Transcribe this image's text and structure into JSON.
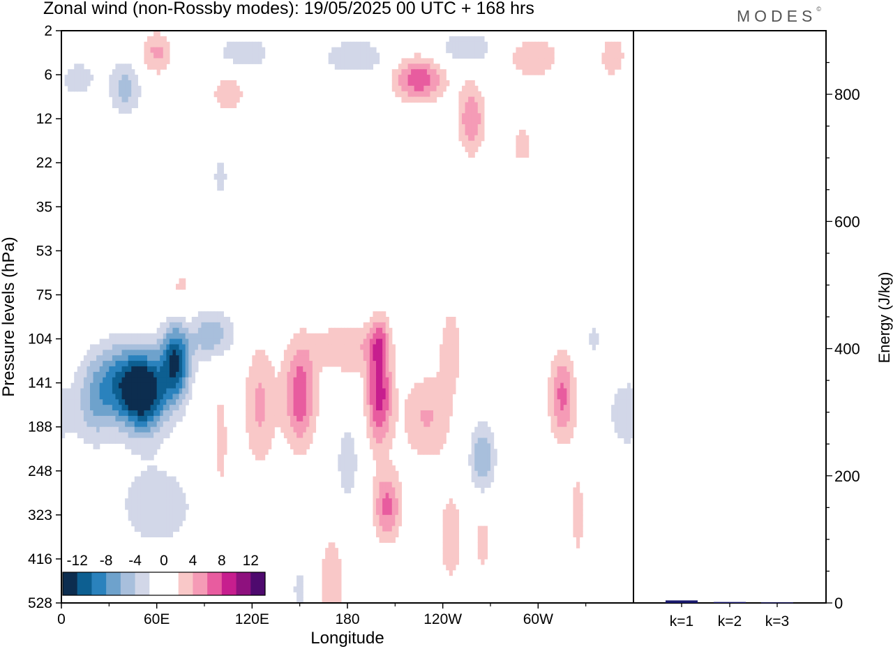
{
  "title": "Zonal wind (non-Rossby modes):  19/05/2025  00 UTC  + 168 hrs",
  "logo": "MODES",
  "chart_data": [
    {
      "type": "heatmap",
      "xlabel": "Longitude",
      "ylabel": "Pressure levels (hPa)",
      "x_ticks": [
        "0",
        "60E",
        "120E",
        "180",
        "120W",
        "60W"
      ],
      "x_tick_degrees": [
        0,
        60,
        120,
        180,
        240,
        300
      ],
      "xlim": [
        0,
        360
      ],
      "y_ticks": [
        "2",
        "6",
        "12",
        "22",
        "35",
        "53",
        "75",
        "104",
        "141",
        "188",
        "248",
        "323",
        "416",
        "528"
      ],
      "y_scale": "categorical levels, top to bottom",
      "colorbar": {
        "labels": [
          "-12",
          "-8",
          "-4",
          "0",
          "4",
          "8",
          "12"
        ],
        "levels": [
          -14,
          -12,
          -10,
          -8,
          -6,
          -4,
          -2,
          0,
          2,
          4,
          6,
          8,
          10,
          12,
          14
        ],
        "colors": [
          "#0c2d4f",
          "#0d5f91",
          "#2a82bd",
          "#6ea2cc",
          "#a8bfdc",
          "#d2d7e8",
          "#ffffff",
          "#ffffff",
          "#f9c8c8",
          "#f59bb6",
          "#e85c9f",
          "#c71e8e",
          "#8e117e",
          "#4e0a6e"
        ],
        "placement": "bottom-left inset"
      },
      "features": [
        {
          "lon": 52,
          "level_index": 8.2,
          "value": -14,
          "kind": "min"
        },
        {
          "lon": 72,
          "level_index": 7.6,
          "value": -13,
          "kind": "min"
        },
        {
          "lon": 150,
          "level_index": 8.3,
          "value": 7,
          "kind": "max"
        },
        {
          "lon": 200,
          "level_index": 8.3,
          "value": 9,
          "kind": "max"
        },
        {
          "lon": 200,
          "level_index": 10.6,
          "value": 6,
          "kind": "max"
        },
        {
          "lon": 225,
          "level_index": 1.1,
          "value": 7,
          "kind": "max"
        },
        {
          "lon": 313,
          "level_index": 8.3,
          "value": 6,
          "kind": "max"
        },
        {
          "lon": 260,
          "level_index": 9.5,
          "value": -5,
          "kind": "min"
        }
      ]
    },
    {
      "type": "bar",
      "ylabel": "Energy (J/kg)",
      "categories": [
        "k=1",
        "k=2",
        "k=3"
      ],
      "values": [
        4,
        1.5,
        0.8
      ],
      "ylim": [
        0,
        900
      ],
      "y_ticks": [
        0,
        200,
        400,
        600,
        800
      ],
      "bar_color": "#1a1a6e"
    }
  ]
}
